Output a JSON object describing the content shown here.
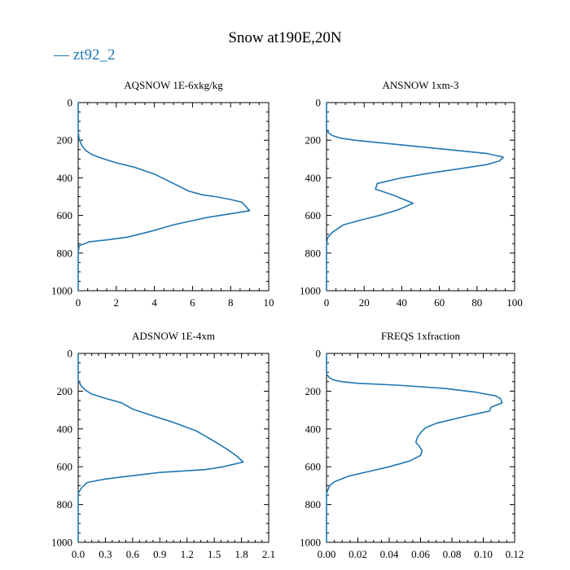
{
  "figure": {
    "title": "Snow at190E,20N",
    "legend": {
      "marker": "—",
      "label": "zt92_2",
      "color": "#1f77b4"
    }
  },
  "chart_data": [
    {
      "type": "line",
      "title": "AQSNOW  1E-6xkg/kg",
      "xlim": [
        0,
        10
      ],
      "ylim": [
        1000,
        0
      ],
      "xticks": [
        "0",
        "2",
        "4",
        "6",
        "8",
        "10"
      ],
      "yticks": [
        "0",
        "200",
        "400",
        "600",
        "800",
        "1000"
      ],
      "series": [
        {
          "color": "#1f77b4",
          "x": [
            0,
            0,
            0,
            0.05,
            0.2,
            0.4,
            0.7,
            1.2,
            2.0,
            3.0,
            4.0,
            5.0,
            5.8,
            6.5,
            7.2,
            8.0,
            8.6,
            9.0,
            6.8,
            5.0,
            3.8,
            2.6,
            1.5,
            0.6,
            0.05,
            0,
            0,
            0,
            0
          ],
          "y": [
            0,
            100,
            150,
            195,
            230,
            255,
            275,
            295,
            320,
            345,
            380,
            430,
            470,
            490,
            500,
            515,
            530,
            575,
            610,
            650,
            685,
            715,
            730,
            740,
            760,
            800,
            900,
            950,
            1000
          ]
        }
      ]
    },
    {
      "type": "line",
      "title": "ANSNOW  1xm-3",
      "xlim": [
        0,
        100
      ],
      "ylim": [
        1000,
        0
      ],
      "xticks": [
        "0",
        "20",
        "40",
        "60",
        "80",
        "100"
      ],
      "yticks": [
        "0",
        "200",
        "400",
        "600",
        "800",
        "1000"
      ],
      "series": [
        {
          "color": "#1f77b4",
          "x": [
            0,
            0,
            0,
            1,
            3,
            7,
            15,
            30,
            50,
            70,
            85,
            94,
            92,
            85,
            72,
            55,
            40,
            27,
            26,
            35,
            46,
            38,
            28,
            18,
            9,
            3,
            0.5,
            0,
            0,
            0
          ],
          "y": [
            0,
            100,
            140,
            160,
            175,
            188,
            200,
            215,
            235,
            255,
            270,
            290,
            310,
            330,
            350,
            375,
            400,
            430,
            460,
            490,
            535,
            570,
            600,
            625,
            650,
            690,
            720,
            760,
            900,
            1000
          ]
        }
      ]
    },
    {
      "type": "line",
      "title": "ADSNOW  1E-4xm",
      "xlim": [
        0,
        2.1
      ],
      "ylim": [
        1000,
        0
      ],
      "xticks": [
        "0.0",
        "0.3",
        "0.6",
        "0.9",
        "1.2",
        "1.5",
        "1.8",
        "2.1"
      ],
      "yticks": [
        "0",
        "200",
        "400",
        "600",
        "800",
        "1000"
      ],
      "series": [
        {
          "color": "#1f77b4",
          "x": [
            0,
            0,
            0,
            0.03,
            0.08,
            0.15,
            0.28,
            0.48,
            0.6,
            0.82,
            1.05,
            1.3,
            1.5,
            1.65,
            1.75,
            1.82,
            1.6,
            1.4,
            0.9,
            0.55,
            0.3,
            0.1,
            0.04,
            0,
            0,
            0
          ],
          "y": [
            0,
            100,
            140,
            170,
            195,
            215,
            235,
            262,
            295,
            330,
            365,
            410,
            465,
            510,
            545,
            575,
            600,
            615,
            630,
            650,
            665,
            683,
            710,
            740,
            900,
            1000
          ]
        }
      ]
    },
    {
      "type": "line",
      "title": "FREQS  1xfraction",
      "xlim": [
        0,
        0.12
      ],
      "ylim": [
        1000,
        0
      ],
      "xticks": [
        "0.00",
        "0.02",
        "0.04",
        "0.06",
        "0.08",
        "0.10",
        "0.12"
      ],
      "yticks": [
        "0",
        "200",
        "400",
        "600",
        "800",
        "1000"
      ],
      "series": [
        {
          "color": "#1f77b4",
          "x": [
            0,
            0,
            0.002,
            0.005,
            0.01,
            0.02,
            0.045,
            0.075,
            0.095,
            0.108,
            0.111,
            0.112,
            0.105,
            0.104,
            0.09,
            0.07,
            0.063,
            0.06,
            0.058,
            0.057,
            0.059,
            0.061,
            0.06,
            0.053,
            0.04,
            0.027,
            0.014,
            0.005,
            0.002,
            0,
            0,
            0
          ],
          "y": [
            0,
            110,
            130,
            142,
            150,
            158,
            168,
            185,
            205,
            225,
            240,
            262,
            285,
            305,
            330,
            370,
            395,
            420,
            445,
            470,
            490,
            515,
            540,
            570,
            600,
            625,
            650,
            680,
            700,
            740,
            900,
            1000
          ]
        }
      ]
    }
  ]
}
